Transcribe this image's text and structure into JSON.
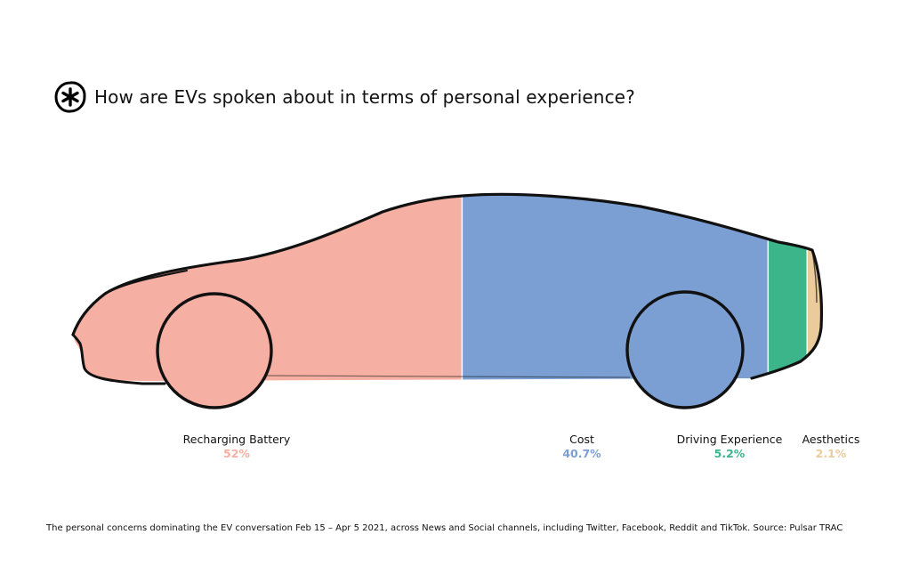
{
  "chart_data": {
    "type": "bar",
    "title": "How are EVs spoken about in terms of personal experience?",
    "categories": [
      "Recharging Battery",
      "Cost",
      "Driving Experience",
      "Aesthetics"
    ],
    "values": [
      52,
      40.7,
      5.2,
      2.1
    ],
    "value_labels": [
      "52%",
      "40.7%",
      "5.2%",
      "2.1%"
    ],
    "colors": [
      "#f6afa3",
      "#7b9fd3",
      "#3db58b",
      "#ebcb9b"
    ],
    "footnote": "The personal concerns dominating the EV conversation Feb 15 – Apr 5 2021, across News and Social channels, including Twitter, Facebook, Reddit and TikTok. Source: Pulsar TRAC"
  },
  "logo_icon": "asterisk-badge-icon"
}
